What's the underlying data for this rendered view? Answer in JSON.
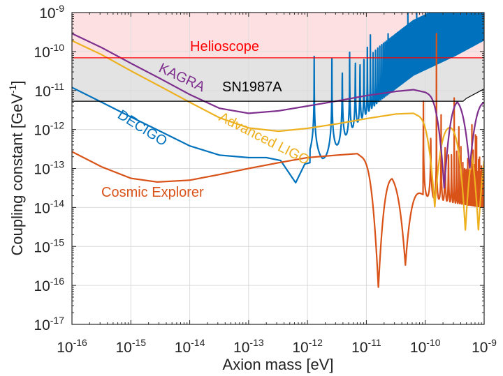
{
  "chart_data": {
    "type": "line",
    "title": "",
    "xlabel": "Axion mass [eV]",
    "ylabel_parts": [
      "Coupling constant [GeV",
      "-1",
      "]"
    ],
    "xscale": "log",
    "yscale": "log",
    "xlim": [
      1e-16,
      1e-09
    ],
    "ylim": [
      1e-17,
      1e-09
    ],
    "grid": true,
    "xticks": [
      [
        "10",
        "-16"
      ],
      [
        "10",
        "-15"
      ],
      [
        "10",
        "-14"
      ],
      [
        "10",
        "-13"
      ],
      [
        "10",
        "-12"
      ],
      [
        "10",
        "-11"
      ],
      [
        "10",
        "-10"
      ],
      [
        "10",
        "-9"
      ]
    ],
    "yticks": [
      [
        "10",
        "-9"
      ],
      [
        "10",
        "-10"
      ],
      [
        "10",
        "-11"
      ],
      [
        "10",
        "-12"
      ],
      [
        "10",
        "-13"
      ],
      [
        "10",
        "-14"
      ],
      [
        "10",
        "-15"
      ],
      [
        "10",
        "-16"
      ],
      [
        "10",
        "-17"
      ]
    ],
    "regions": [
      {
        "name": "Helioscope",
        "lower_bound": 6.9e-11,
        "line_color": "#ff0000",
        "fill_color": "#fde1e2"
      },
      {
        "name": "SN1987A",
        "line_color": "#000000",
        "fill_color": "#e3e3e3",
        "x": [
          1e-16,
          4.4e-10,
          5e-10,
          1e-09
        ],
        "y": [
          5.3e-12,
          5.3e-12,
          6.3e-12,
          1.1e-11
        ]
      }
    ],
    "series": [
      {
        "name": "DECIGO",
        "color": "#0072BD",
        "x": [
          1e-16,
          3.2e-16,
          1e-15,
          3.2e-15,
          1e-14,
          3.2e-14,
          1e-13,
          2e-13,
          3.5e-13,
          6.3e-13,
          9e-13,
          1.8e-12,
          3.2e-12,
          6.3e-12,
          1.66e-11,
          6.3e-11,
          3.2e-10,
          1e-09
        ],
        "y": [
          1.2e-11,
          5e-12,
          2.1e-12,
          8.9e-13,
          3.8e-13,
          2.2e-13,
          1.9e-13,
          1.9e-13,
          1.6e-13,
          4.3e-14,
          1.3e-13,
          1.7e-13,
          4e-13,
          1.3e-12,
          5.4e-12,
          2.5e-11,
          7.9e-11,
          2e-10
        ],
        "dips": []
      },
      {
        "name": "Cosmic Explorer",
        "color": "#D95319",
        "x": [
          1e-16,
          3.2e-16,
          1e-15,
          2.8e-15,
          1e-14,
          3.2e-14,
          1e-13,
          3.2e-13,
          1e-12,
          3.2e-12,
          7e-12,
          1e-11,
          3.2e-11,
          1e-10,
          3.2e-10,
          1e-09
        ],
        "y": [
          2.7e-13,
          1.1e-13,
          5.6e-14,
          4.5e-14,
          5e-14,
          7e-14,
          1e-13,
          1.4e-13,
          1.9e-13,
          2.2e-13,
          2.4e-13,
          1.6e-13,
          5e-14,
          2e-14,
          1.3e-14,
          1e-14
        ],
        "dips": [
          [
            1.6e-11,
            8.5e-17
          ],
          [
            4.6e-11,
            3.3e-16
          ]
        ]
      },
      {
        "name": "Advanced LIGO",
        "color": "#EDB120",
        "x": [
          1e-16,
          3.2e-16,
          1e-15,
          3.2e-15,
          1e-14,
          3.2e-14,
          1e-13,
          3.2e-13,
          1e-12,
          3.2e-12,
          1e-11,
          3.2e-11,
          6.3e-11,
          1e-10,
          1.6e-10,
          1e-09
        ],
        "y": [
          1.9e-10,
          8.3e-11,
          3.2e-11,
          1.26e-11,
          5e-12,
          2e-12,
          1.1e-12,
          9e-13,
          1.07e-12,
          1.4e-12,
          1.9e-12,
          2.5e-12,
          2.6e-12,
          1.8e-12,
          1.2e-12,
          1e-12
        ],
        "dips": [
          [
            1.45e-10,
            1e-14
          ],
          [
            4.8e-10,
            2.5e-15
          ],
          [
            8e-10,
            2.5e-15
          ]
        ]
      },
      {
        "name": "KAGRA",
        "color": "#7E2F8E",
        "x": [
          1e-16,
          3.2e-16,
          1e-15,
          3.2e-15,
          1e-14,
          3.2e-14,
          1e-13,
          3.2e-13,
          1e-12,
          3.2e-12,
          1e-11,
          3.2e-11,
          6.3e-11,
          1e-10,
          1.6e-10,
          1e-09
        ],
        "y": [
          2.9e-10,
          1.26e-10,
          5e-11,
          2e-11,
          7.9e-12,
          3.5e-12,
          2.6e-12,
          3e-12,
          4e-12,
          5.4e-12,
          7.4e-12,
          9.5e-12,
          1.05e-11,
          9e-12,
          6e-12,
          5e-12
        ],
        "dips": [
          [
            2.1e-10,
            3e-14
          ],
          [
            5.7e-10,
            1e-13
          ]
        ]
      }
    ],
    "annotations": [
      "Helioscope",
      "KAGRA",
      "SN1987A",
      "Advanced LIGO",
      "DECIGO",
      "Cosmic Explorer"
    ]
  }
}
